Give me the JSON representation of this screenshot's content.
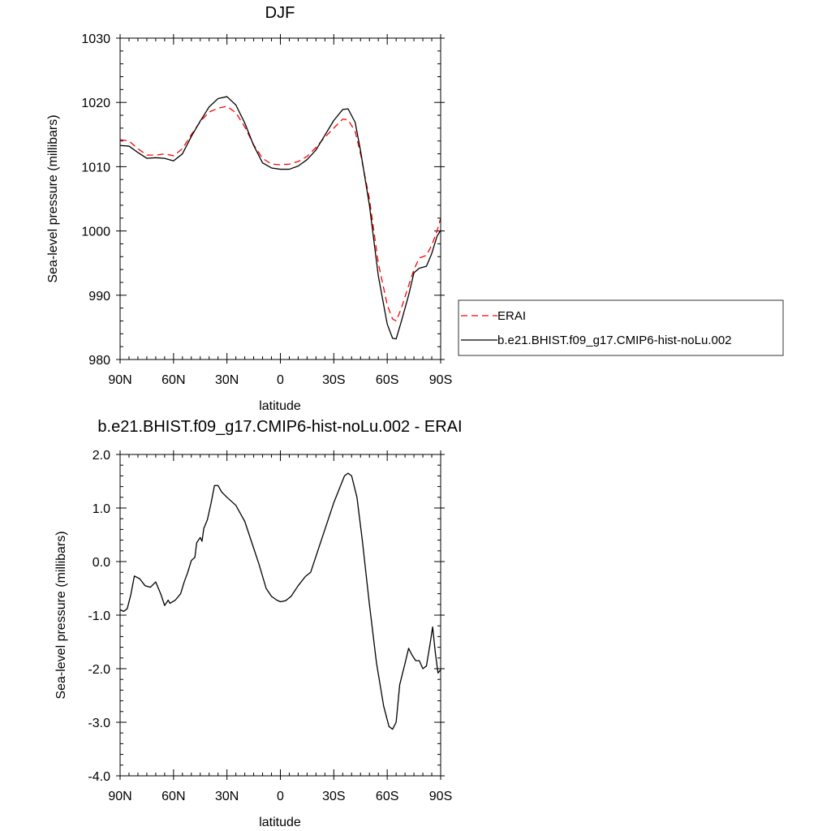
{
  "chart_data": [
    {
      "type": "line",
      "title": "DJF",
      "xlabel": "latitude",
      "ylabel": "Sea-level pressure (millibars)",
      "xlim": [
        90,
        -90
      ],
      "ylim": [
        980,
        1030
      ],
      "xticks": [
        90,
        60,
        30,
        0,
        -30,
        -60,
        -90
      ],
      "xtick_labels": [
        "90N",
        "60N",
        "30N",
        "0",
        "30S",
        "60S",
        "90S"
      ],
      "yticks": [
        980,
        990,
        1000,
        1010,
        1020,
        1030
      ],
      "ytick_labels": [
        "980",
        "990",
        "1000",
        "1010",
        "1020",
        "1030"
      ],
      "legend_position": "right",
      "series": [
        {
          "name": "ERAI",
          "color": "#ff0000",
          "style": "dashed",
          "points": [
            [
              90,
              1014.2
            ],
            [
              85,
              1014.0
            ],
            [
              80,
              1012.8
            ],
            [
              75,
              1011.8
            ],
            [
              70,
              1011.8
            ],
            [
              65,
              1012.0
            ],
            [
              60,
              1011.7
            ],
            [
              55,
              1012.8
            ],
            [
              50,
              1015.0
            ],
            [
              45,
              1017.0
            ],
            [
              40,
              1018.5
            ],
            [
              35,
              1019.1
            ],
            [
              30,
              1019.4
            ],
            [
              25,
              1018.4
            ],
            [
              20,
              1016.2
            ],
            [
              15,
              1013.4
            ],
            [
              10,
              1011.3
            ],
            [
              5,
              1010.4
            ],
            [
              0,
              1010.3
            ],
            [
              -5,
              1010.4
            ],
            [
              -10,
              1010.8
            ],
            [
              -15,
              1011.6
            ],
            [
              -20,
              1013.0
            ],
            [
              -25,
              1014.6
            ],
            [
              -30,
              1016.0
            ],
            [
              -35,
              1017.4
            ],
            [
              -38,
              1017.3
            ],
            [
              -42,
              1015.5
            ],
            [
              -45,
              1012.0
            ],
            [
              -50,
              1005.0
            ],
            [
              -55,
              995.0
            ],
            [
              -60,
              988.5
            ],
            [
              -63,
              986.3
            ],
            [
              -65,
              986.0
            ],
            [
              -68,
              988.0
            ],
            [
              -72,
              991.5
            ],
            [
              -75,
              994.0
            ],
            [
              -78,
              995.8
            ],
            [
              -82,
              996.2
            ],
            [
              -85,
              997.8
            ],
            [
              -88,
              1000.0
            ],
            [
              -90,
              1002.0
            ]
          ]
        },
        {
          "name": "b.e21.BHIST.f09_g17.CMIP6-hist-noLu.002",
          "color": "#000000",
          "style": "solid",
          "points": [
            [
              90,
              1013.3
            ],
            [
              85,
              1013.2
            ],
            [
              80,
              1012.2
            ],
            [
              75,
              1011.3
            ],
            [
              70,
              1011.4
            ],
            [
              65,
              1011.3
            ],
            [
              60,
              1010.9
            ],
            [
              55,
              1012.0
            ],
            [
              50,
              1014.7
            ],
            [
              45,
              1017.1
            ],
            [
              40,
              1019.3
            ],
            [
              35,
              1020.6
            ],
            [
              30,
              1020.9
            ],
            [
              25,
              1019.6
            ],
            [
              20,
              1016.8
            ],
            [
              15,
              1013.3
            ],
            [
              10,
              1010.6
            ],
            [
              5,
              1009.8
            ],
            [
              0,
              1009.6
            ],
            [
              -5,
              1009.6
            ],
            [
              -10,
              1010.1
            ],
            [
              -15,
              1011.1
            ],
            [
              -20,
              1012.6
            ],
            [
              -25,
              1014.9
            ],
            [
              -30,
              1017.2
            ],
            [
              -35,
              1018.9
            ],
            [
              -38,
              1019.0
            ],
            [
              -42,
              1016.9
            ],
            [
              -45,
              1012.5
            ],
            [
              -50,
              1004.0
            ],
            [
              -55,
              993.0
            ],
            [
              -60,
              985.5
            ],
            [
              -63,
              983.3
            ],
            [
              -65,
              983.2
            ],
            [
              -68,
              986.0
            ],
            [
              -72,
              990.0
            ],
            [
              -75,
              993.5
            ],
            [
              -78,
              994.2
            ],
            [
              -82,
              994.5
            ],
            [
              -85,
              996.5
            ],
            [
              -88,
              999.2
            ],
            [
              -90,
              1000.1
            ]
          ]
        }
      ]
    },
    {
      "type": "line",
      "title": "b.e21.BHIST.f09_g17.CMIP6-hist-noLu.002 - ERAI",
      "xlabel": "latitude",
      "ylabel": "Sea-level pressure (millibars)",
      "xlim": [
        90,
        -90
      ],
      "ylim": [
        -4.0,
        2.0
      ],
      "xticks": [
        90,
        60,
        30,
        0,
        -30,
        -60,
        -90
      ],
      "xtick_labels": [
        "90N",
        "60N",
        "30N",
        "0",
        "30S",
        "60S",
        "90S"
      ],
      "yticks": [
        -4.0,
        -3.0,
        -2.0,
        -1.0,
        0.0,
        1.0,
        2.0
      ],
      "ytick_labels": [
        "-4.0",
        "-3.0",
        "-2.0",
        "-1.0",
        "0.0",
        "1.0",
        "2.0"
      ],
      "series": [
        {
          "color": "#000000",
          "style": "solid",
          "points": [
            [
              90,
              -0.9
            ],
            [
              88,
              -0.93
            ],
            [
              86,
              -0.88
            ],
            [
              84,
              -0.62
            ],
            [
              82,
              -0.27
            ],
            [
              79,
              -0.32
            ],
            [
              76,
              -0.45
            ],
            [
              73,
              -0.48
            ],
            [
              70,
              -0.38
            ],
            [
              67,
              -0.62
            ],
            [
              65,
              -0.82
            ],
            [
              63,
              -0.72
            ],
            [
              62,
              -0.78
            ],
            [
              59,
              -0.72
            ],
            [
              56,
              -0.6
            ],
            [
              54,
              -0.38
            ],
            [
              52,
              -0.2
            ],
            [
              50,
              0.02
            ],
            [
              48,
              0.08
            ],
            [
              47,
              0.35
            ],
            [
              45,
              0.45
            ],
            [
              44,
              0.38
            ],
            [
              43,
              0.62
            ],
            [
              41,
              0.78
            ],
            [
              39,
              1.08
            ],
            [
              37,
              1.42
            ],
            [
              35,
              1.42
            ],
            [
              33,
              1.3
            ],
            [
              30,
              1.2
            ],
            [
              25,
              1.05
            ],
            [
              20,
              0.75
            ],
            [
              15,
              0.25
            ],
            [
              12,
              -0.05
            ],
            [
              8,
              -0.5
            ],
            [
              5,
              -0.65
            ],
            [
              2,
              -0.72
            ],
            [
              0,
              -0.75
            ],
            [
              -3,
              -0.73
            ],
            [
              -6,
              -0.65
            ],
            [
              -10,
              -0.45
            ],
            [
              -14,
              -0.28
            ],
            [
              -17,
              -0.2
            ],
            [
              -20,
              0.1
            ],
            [
              -23,
              0.4
            ],
            [
              -27,
              0.8
            ],
            [
              -30,
              1.1
            ],
            [
              -33,
              1.35
            ],
            [
              -36,
              1.6
            ],
            [
              -38,
              1.65
            ],
            [
              -40,
              1.6
            ],
            [
              -43,
              1.2
            ],
            [
              -46,
              0.4
            ],
            [
              -50,
              -0.8
            ],
            [
              -54,
              -1.9
            ],
            [
              -58,
              -2.7
            ],
            [
              -61,
              -3.08
            ],
            [
              -63,
              -3.13
            ],
            [
              -65,
              -3.0
            ],
            [
              -67,
              -2.3
            ],
            [
              -70,
              -1.9
            ],
            [
              -72,
              -1.62
            ],
            [
              -74,
              -1.75
            ],
            [
              -76,
              -1.85
            ],
            [
              -78,
              -1.85
            ],
            [
              -80,
              -2.0
            ],
            [
              -82,
              -1.95
            ],
            [
              -84,
              -1.55
            ],
            [
              -85.5,
              -1.22
            ],
            [
              -87,
              -1.7
            ],
            [
              -88.5,
              -2.08
            ],
            [
              -90,
              -2.02
            ]
          ]
        }
      ]
    }
  ]
}
